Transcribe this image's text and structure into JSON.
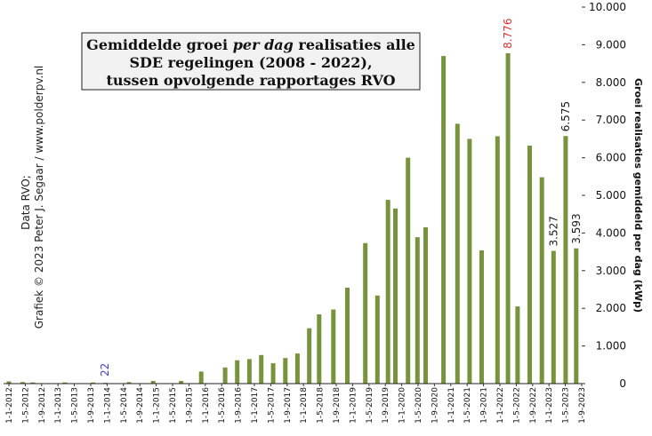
{
  "chart_data": {
    "type": "bar",
    "title_lines": [
      [
        {
          "t": "Gemiddelde  groei ",
          "i": false
        },
        {
          "t": "per dag",
          "i": true
        },
        {
          "t": " realisaties  alle",
          "i": false
        }
      ],
      [
        {
          "t": "SDE regelingen (2008 - 2022),",
          "i": false
        }
      ],
      [
        {
          "t": "tussen opvolgende rapportages RVO",
          "i": false
        }
      ]
    ],
    "ylabel": "Groei realisaties gemiddeld per dag (kWp)",
    "credit_line1": "Data RVO;",
    "credit_line2": "Grafiek © 2023 Peter J. Segaar / www.polderpv.nl",
    "ylim": [
      0,
      10000
    ],
    "yticks": [
      0,
      1000,
      2000,
      3000,
      4000,
      5000,
      6000,
      7000,
      8000,
      9000,
      10000
    ],
    "ytick_labels": [
      "0",
      "1.000",
      "2.000",
      "3.000",
      "4.000",
      "5.000",
      "6.000",
      "7.000",
      "8.000",
      "9.000",
      "10.000"
    ],
    "bar_color": "#77933c",
    "xtick_labels": [
      "1-1-2012",
      "1-5-2012",
      "1-9-2012",
      "1-1-2013",
      "1-5-2013",
      "1-9-2013",
      "1-1-2014",
      "1-5-2014",
      "1-9-2014",
      "1-1-2015",
      "1-5-2015",
      "1-9-2015",
      "1-1-2016",
      "1-5-2016",
      "1-9-2016",
      "1-1-2017",
      "1-5-2017",
      "1-9-2017",
      "1-1-2018",
      "1-5-2018",
      "1-9-2018",
      "1-1-2019",
      "1-5-2019",
      "1-9-2019",
      "1-1-2020",
      "1-5-2020",
      "1-9-2020",
      "1-1-2021",
      "1-5-2021",
      "1-9-2021",
      "1-1-2022",
      "1-5-2022",
      "1-9-2022",
      "1-1-2023",
      "1-5-2023",
      "1-9-2023"
    ],
    "bars": [
      {
        "x": "2012-01-01",
        "y": 60
      },
      {
        "x": "2012-04-15",
        "y": 40
      },
      {
        "x": "2012-07-01",
        "y": 30
      },
      {
        "x": "2013-03-01",
        "y": 30
      },
      {
        "x": "2013-10-01",
        "y": 30
      },
      {
        "x": "2014-01-01",
        "y": 22
      },
      {
        "x": "2014-07-01",
        "y": 40
      },
      {
        "x": "2015-01-01",
        "y": 70
      },
      {
        "x": "2015-08-01",
        "y": 70
      },
      {
        "x": "2016-01-01",
        "y": 320
      },
      {
        "x": "2016-07-01",
        "y": 430
      },
      {
        "x": "2016-10-01",
        "y": 620
      },
      {
        "x": "2017-01-01",
        "y": 650
      },
      {
        "x": "2017-04-01",
        "y": 760
      },
      {
        "x": "2017-07-01",
        "y": 540
      },
      {
        "x": "2017-10-01",
        "y": 680
      },
      {
        "x": "2018-01-01",
        "y": 800
      },
      {
        "x": "2018-04-01",
        "y": 1470
      },
      {
        "x": "2018-06-15",
        "y": 1840
      },
      {
        "x": "2018-10-01",
        "y": 1970
      },
      {
        "x": "2019-01-15",
        "y": 2550
      },
      {
        "x": "2019-06-01",
        "y": 3730
      },
      {
        "x": "2019-09-01",
        "y": 2340
      },
      {
        "x": "2019-11-20",
        "y": 4880
      },
      {
        "x": "2020-01-15",
        "y": 4650
      },
      {
        "x": "2020-04-20",
        "y": 6000
      },
      {
        "x": "2020-07-01",
        "y": 3890
      },
      {
        "x": "2020-09-01",
        "y": 4150
      },
      {
        "x": "2021-01-15",
        "y": 8700
      },
      {
        "x": "2021-05-01",
        "y": 6900
      },
      {
        "x": "2021-08-01",
        "y": 6500
      },
      {
        "x": "2021-11-01",
        "y": 3540
      },
      {
        "x": "2022-03-01",
        "y": 6570
      },
      {
        "x": "2022-05-20",
        "y": 8776,
        "label": "8.776",
        "label_color": "#e03030"
      },
      {
        "x": "2022-08-01",
        "y": 2050
      },
      {
        "x": "2022-11-01",
        "y": 6320
      },
      {
        "x": "2023-02-01",
        "y": 5480
      },
      {
        "x": "2023-05-01",
        "y": 3527,
        "label": "3.527",
        "label_color": "#1a1a1a"
      },
      {
        "x": "2023-08-01",
        "y": 6575,
        "label": "6.575",
        "label_color": "#1a1a1a"
      },
      {
        "x": "2023-10-20",
        "y": 3593,
        "label": "3.593",
        "label_color": "#1a1a1a"
      }
    ],
    "annotations": [
      {
        "text": "22",
        "x": "2014-01-01",
        "color": "#3a3ae0"
      }
    ]
  }
}
